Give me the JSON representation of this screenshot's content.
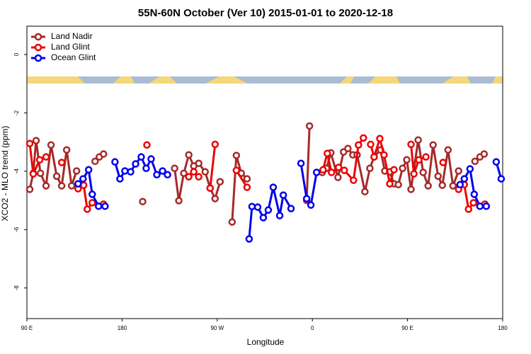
{
  "chart_data": {
    "type": "line",
    "title": "55N-60N October (Ver 10)   2015-01-01 to 2020-12-18",
    "x_label": "Longitude",
    "y_label": "XCO2 - MLO trend (ppm)",
    "xlim": [
      90,
      540
    ],
    "ylim": [
      -9.05,
      0.97
    ],
    "xticks": [
      {
        "value": 90,
        "label": "90 E"
      },
      180,
      {
        "value": 270,
        "label": "90 W"
      },
      {
        "value": 360,
        "label": "0"
      },
      {
        "value": 450,
        "label": "90 E"
      },
      {
        "value": 540,
        "label": "180"
      }
    ],
    "yticks": [
      -8,
      -6,
      -4,
      -2,
      0
    ],
    "legend": "top-left",
    "grid": false,
    "series": [
      {
        "name": "Land Nadir",
        "color": "#a52a2a",
        "x": [
          92.7,
          96.0,
          98.7,
          102.8,
          108.1,
          112.8,
          118.2,
          122.9,
          127.6,
          132.3,
          137.0,
          null,
          154.5,
          158.5,
          162.5,
          null,
          199.5,
          null,
          229.7,
          233.7,
          238.4,
          243.1,
          247.8,
          252.5,
          258.6,
          263.3,
          268.0,
          272.7,
          null,
          284.1,
          288.1,
          292.8,
          298.2,
          null,
          354.6,
          357.3,
          null,
          369.4,
          373.4,
          377.4,
          384.2,
          389.5,
          393.6,
          398.3,
          402.3,
          409.7,
          414.4,
          418.4,
          424.5,
          428.5,
          433.2,
          437.2,
          441.3,
          445.3,
          449.3,
          453.3,
          460.1,
          464.8,
          469.5,
          474.2,
          478.9,
          482.9,
          488.3,
          493.0,
          498.3,
          null,
          513.8,
          518.5,
          522.5
        ],
        "values": [
          -4.62,
          -4.07,
          -2.95,
          -4.07,
          -4.5,
          -3.1,
          -4.17,
          -4.5,
          -3.27,
          -4.5,
          -3.99,
          null,
          -3.66,
          -3.51,
          -3.41,
          null,
          -5.04,
          null,
          -3.9,
          -5.01,
          -4.07,
          -3.44,
          -3.82,
          -3.73,
          -4.02,
          -4.58,
          -4.94,
          -4.36,
          null,
          -5.74,
          -3.46,
          -4.07,
          -4.26,
          null,
          -5.0,
          -2.45,
          null,
          -4.04,
          -3.9,
          -3.37,
          -4.21,
          -3.34,
          -3.22,
          -3.44,
          -3.44,
          -4.7,
          -3.9,
          -3.51,
          -3.27,
          -3.99,
          -4.02,
          -4.43,
          -4.46,
          -3.9,
          -3.61,
          -4.62,
          -2.93,
          -4.04,
          -4.5,
          -3.1,
          -4.17,
          -4.48,
          -3.27,
          -4.5,
          -3.99,
          null,
          -3.66,
          -3.51,
          -3.41
        ]
      },
      {
        "name": "Land Glint",
        "color": "#ee0000",
        "x": [
          92.7,
          96.0,
          102.1,
          108.1,
          null,
          122.9,
          null,
          138.4,
          143.7,
          147.1,
          151.8,
          null,
          162.5,
          null,
          203.5,
          null,
          243.1,
          247.8,
          252.5,
          null,
          263.3,
          268.0,
          null,
          288.1,
          298.2,
          null,
          370.1,
          374.1,
          378.1,
          384.8,
          390.2,
          398.9,
          403.6,
          408.3,
          null,
          415.1,
          418.4,
          423.8,
          427.8,
          433.2,
          437.2,
          null,
          453.3,
          456.0,
          460.7,
          467.4,
          null,
          483.6,
          null,
          498.3,
          503.7,
          507.7,
          512.4,
          null,
          523.2
        ],
        "values": [
          -3.05,
          -4.09,
          -3.61,
          -3.51,
          null,
          -3.7,
          null,
          -4.6,
          -4.48,
          -5.3,
          -5.08,
          null,
          -5.13,
          null,
          -3.1,
          null,
          -4.19,
          -4.02,
          -4.19,
          null,
          -4.58,
          -3.08,
          null,
          -3.97,
          -4.55,
          null,
          -3.95,
          -3.39,
          -4.04,
          -3.87,
          -3.97,
          -4.31,
          -3.1,
          -2.86,
          null,
          -3.08,
          -3.51,
          -2.88,
          -3.44,
          -4.43,
          -3.95,
          null,
          -3.08,
          -4.09,
          -3.61,
          -3.51,
          null,
          -3.7,
          null,
          -4.62,
          -4.46,
          -5.3,
          -5.08,
          null,
          -5.13
        ]
      },
      {
        "name": "Ocean Glint",
        "color": "#0000ee",
        "x": [
          138.4,
          143.1,
          148.4,
          151.8,
          157.8,
          163.9,
          null,
          173.3,
          178.0,
          182.7,
          188.1,
          192.8,
          198.1,
          202.8,
          207.5,
          212.9,
          218.3,
          223.0,
          null,
          300.2,
          302.9,
          308.3,
          313.6,
          318.3,
          323.0,
          329.1,
          332.5,
          339.8,
          null,
          349.2,
          354.6,
          358.6,
          364.0,
          null,
          499.7,
          503.7,
          509.1,
          513.1,
          518.5,
          524.5,
          null,
          533.9,
          538.6
        ],
        "values": [
          -4.43,
          -4.26,
          -3.95,
          -4.79,
          -5.2,
          -5.2,
          null,
          -3.68,
          -4.26,
          -3.99,
          -4.02,
          -3.75,
          -3.51,
          -3.9,
          -3.58,
          -4.12,
          -3.99,
          -4.12,
          null,
          -6.32,
          -5.21,
          -5.23,
          -5.59,
          -5.33,
          -4.55,
          -5.52,
          -4.82,
          -5.28,
          null,
          -3.73,
          -4.94,
          -5.16,
          -4.04,
          null,
          -4.46,
          -4.26,
          -3.92,
          -4.79,
          -5.2,
          -5.2,
          null,
          -3.68,
          -4.26
        ]
      }
    ]
  }
}
